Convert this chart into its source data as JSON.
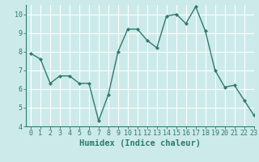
{
  "x": [
    0,
    1,
    2,
    3,
    4,
    5,
    6,
    7,
    8,
    9,
    10,
    11,
    12,
    13,
    14,
    15,
    16,
    17,
    18,
    19,
    20,
    21,
    22,
    23
  ],
  "y": [
    7.9,
    7.6,
    6.3,
    6.7,
    6.7,
    6.3,
    6.3,
    4.3,
    5.7,
    8.0,
    9.2,
    9.2,
    8.6,
    8.2,
    9.9,
    10.0,
    9.5,
    10.4,
    9.1,
    7.0,
    6.1,
    6.2,
    5.4,
    4.6
  ],
  "xlabel": "Humidex (Indice chaleur)",
  "xlim": [
    -0.5,
    23
  ],
  "ylim": [
    4,
    10.5
  ],
  "yticks": [
    4,
    5,
    6,
    7,
    8,
    9,
    10
  ],
  "xticks": [
    0,
    1,
    2,
    3,
    4,
    5,
    6,
    7,
    8,
    9,
    10,
    11,
    12,
    13,
    14,
    15,
    16,
    17,
    18,
    19,
    20,
    21,
    22,
    23
  ],
  "line_color": "#2e7b6e",
  "marker": "D",
  "marker_size": 2.0,
  "line_width": 1.0,
  "bg_color": "#cceaea",
  "grid_color": "#ffffff",
  "tick_fontsize": 6.0,
  "xlabel_fontsize": 7.5,
  "font_family": "monospace"
}
